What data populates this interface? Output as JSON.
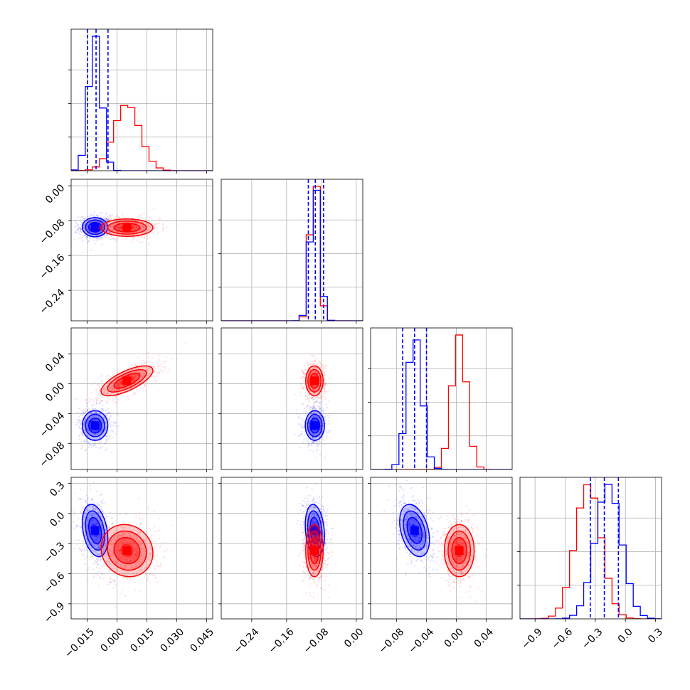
{
  "figure": {
    "type": "corner-plot",
    "colors": {
      "blue": "#0000ff",
      "red": "#ff0000",
      "grid": "#b0b0b0",
      "frame": "#000000"
    }
  },
  "chart_data": {
    "type": "corner",
    "n_params": 4,
    "param_ranges": [
      [
        -0.023,
        0.048
      ],
      [
        -0.31,
        0.015
      ],
      [
        -0.115,
        0.075
      ],
      [
        -1.05,
        0.36
      ]
    ],
    "x_ticks": [
      [
        "−0.015",
        "0.000",
        "0.015",
        "0.030",
        "0.045"
      ],
      [
        "−0.24",
        "−0.16",
        "−0.08",
        "0.00"
      ],
      [
        "−0.08",
        "−0.04",
        "0.00",
        "0.04"
      ],
      [
        "−0.9",
        "−0.6",
        "−0.3",
        "0.0",
        "0.3"
      ]
    ],
    "y_ticks": [
      [],
      [
        "0.00",
        "−0.08",
        "−0.16",
        "−0.24"
      ],
      [
        "0.04",
        "0.00",
        "−0.04",
        "−0.08"
      ],
      [
        "0.3",
        "0.0",
        "−0.3",
        "−0.6",
        "−0.9"
      ]
    ],
    "series": [
      {
        "name": "blue",
        "color": "#0000ff",
        "means": [
          -0.011,
          -0.095,
          -0.056,
          -0.17
        ],
        "sigmas": [
          0.0032,
          0.011,
          0.01,
          0.13
        ],
        "quantiles": [
          [
            -0.0148,
            -0.0105,
            -0.0045
          ],
          [
            -0.11,
            -0.094,
            -0.075
          ],
          [
            -0.072,
            -0.056,
            -0.04
          ],
          [
            -0.35,
            -0.21,
            -0.07
          ]
        ],
        "rho": {
          "0,3": -0.3,
          "2,3": -0.35,
          "1,3": -0.2
        }
      },
      {
        "name": "red",
        "color": "#ff0000",
        "means": [
          0.005,
          -0.096,
          0.004,
          -0.37
        ],
        "sigmas": [
          0.0065,
          0.01,
          0.01,
          0.13
        ],
        "rho": {
          "0,2": 0.7,
          "0,3": -0.1
        }
      }
    ]
  }
}
